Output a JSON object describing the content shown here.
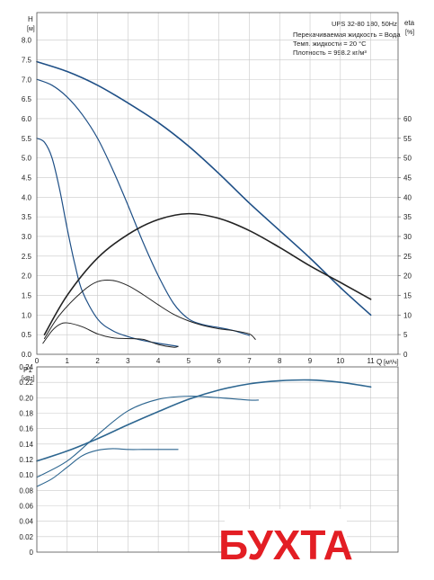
{
  "header": {
    "model": "UPS 32-80 180, 50Hz",
    "fluid": "Перекачиваемая жидкость = Вода",
    "temp": "Темп. жидкости = 20 °C",
    "density": "Плотность = 998.2 кг/м³"
  },
  "watermark": {
    "text": "БУХТА",
    "color": "#e31e24"
  },
  "colors": {
    "head": "#1e4f86",
    "eff": "#222222",
    "power": "#2d6690",
    "grid": "#c9c9c9"
  },
  "chart_data": [
    {
      "type": "line",
      "title": "",
      "xlabel": "Q",
      "xunit": "[м³/ч]",
      "ylabel": "H",
      "yunit": "[м]",
      "y2label": "eta",
      "y2unit": "[%]",
      "xlim": [
        0,
        11.9
      ],
      "ylim": [
        0,
        8.7
      ],
      "y2lim": [
        0,
        87
      ],
      "grid": true,
      "x_ticks": [
        "0",
        "1",
        "2",
        "3",
        "4",
        "5",
        "6",
        "7",
        "8",
        "9",
        "10",
        "11"
      ],
      "y_ticks": [
        "0.0",
        "0.5",
        "1.0",
        "1.5",
        "2.0",
        "2.5",
        "3.0",
        "3.5",
        "4.0",
        "4.5",
        "5.0",
        "5.5",
        "6.0",
        "6.5",
        "7.0",
        "7.5",
        "8.0"
      ],
      "y2_ticks": [
        "0",
        "5",
        "10",
        "15",
        "20",
        "25",
        "30",
        "35",
        "40",
        "45",
        "50",
        "55",
        "60"
      ],
      "series": [
        {
          "role": "head",
          "x": [
            0,
            1,
            2,
            3,
            4,
            5,
            6,
            7,
            8,
            9,
            10,
            11
          ],
          "y": [
            7.45,
            7.2,
            6.85,
            6.4,
            5.9,
            5.3,
            4.6,
            3.85,
            3.15,
            2.45,
            1.7,
            1.0
          ]
        },
        {
          "role": "head",
          "x": [
            0,
            0.5,
            1,
            1.5,
            2,
            2.5,
            3,
            3.5,
            4,
            4.5,
            5,
            5.5,
            6,
            6.5,
            7
          ],
          "y": [
            7.0,
            6.85,
            6.55,
            6.1,
            5.5,
            4.7,
            3.8,
            2.85,
            2.0,
            1.3,
            0.9,
            0.75,
            0.68,
            0.6,
            0.48
          ]
        },
        {
          "role": "head",
          "x": [
            0,
            0.25,
            0.5,
            0.75,
            1,
            1.25,
            1.5,
            2,
            2.5,
            3,
            3.5,
            4,
            4.5,
            4.65
          ],
          "y": [
            5.5,
            5.4,
            5.0,
            4.2,
            3.2,
            2.3,
            1.6,
            0.9,
            0.6,
            0.45,
            0.35,
            0.28,
            0.22,
            0.2
          ]
        },
        {
          "role": "eff",
          "x": [
            0.25,
            1,
            2,
            3,
            4,
            5,
            6,
            7,
            8,
            9,
            10,
            11
          ],
          "y2": [
            5,
            15,
            24.5,
            30.5,
            34.3,
            35.8,
            34.6,
            31.5,
            27.2,
            22.5,
            18.3,
            14
          ]
        },
        {
          "role": "eff",
          "x": [
            0.25,
            0.75,
            1.5,
            2,
            2.5,
            3,
            3.5,
            4,
            4.5,
            5,
            5.5,
            6,
            6.5,
            7,
            7.2
          ],
          "y2": [
            4,
            10,
            16,
            18.5,
            18.8,
            17.5,
            15.2,
            12.6,
            10.2,
            8.5,
            7.3,
            6.5,
            6.0,
            5.2,
            3.8
          ]
        },
        {
          "role": "eff",
          "x": [
            0.2,
            0.5,
            0.75,
            1,
            1.5,
            2,
            2.5,
            3,
            3.5,
            4,
            4.5,
            4.65
          ],
          "y2": [
            2.8,
            6,
            7.6,
            8.0,
            7.0,
            5.2,
            4.2,
            4.0,
            3.8,
            2.5,
            1.8,
            2.0
          ]
        }
      ]
    },
    {
      "type": "line",
      "title": "",
      "ylabel": "P1",
      "yunit": "[кВт]",
      "xlim": [
        0,
        11.9
      ],
      "ylim": [
        0,
        0.24
      ],
      "grid": true,
      "y_ticks": [
        "0",
        "0.02",
        "0.04",
        "0.06",
        "0.08",
        "0.10",
        "0.12",
        "0.14",
        "0.16",
        "0.18",
        "0.20",
        "0.22",
        "0.24"
      ],
      "series": [
        {
          "role": "power",
          "x": [
            0,
            1,
            2,
            3,
            4,
            5,
            6,
            7,
            8,
            9,
            10,
            11
          ],
          "y": [
            0.118,
            0.131,
            0.147,
            0.165,
            0.182,
            0.198,
            0.21,
            0.218,
            0.222,
            0.223,
            0.22,
            0.214
          ]
        },
        {
          "role": "power",
          "x": [
            0,
            1,
            2,
            3,
            4,
            5,
            6,
            7,
            7.3
          ],
          "y": [
            0.097,
            0.118,
            0.152,
            0.183,
            0.198,
            0.202,
            0.2,
            0.197,
            0.197
          ]
        },
        {
          "role": "power",
          "x": [
            0,
            0.5,
            1,
            1.5,
            2,
            2.5,
            3,
            3.5,
            4,
            4.65
          ],
          "y": [
            0.085,
            0.095,
            0.11,
            0.125,
            0.132,
            0.134,
            0.133,
            0.133,
            0.133,
            0.133
          ]
        }
      ]
    }
  ]
}
